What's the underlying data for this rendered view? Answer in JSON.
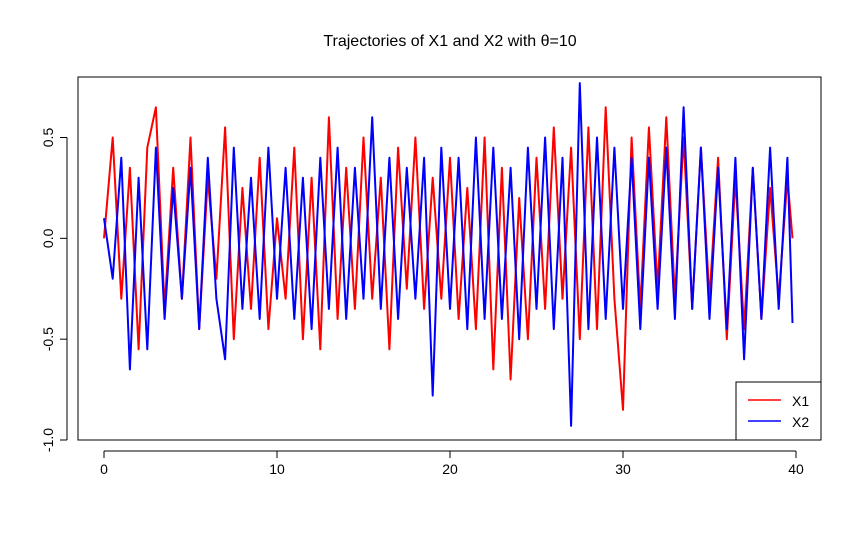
{
  "chart_data": {
    "type": "line",
    "title": "Trajectories of X1 and X2 with θ=10",
    "xlabel": "",
    "ylabel": "",
    "xlim": [
      0,
      40
    ],
    "ylim": [
      -1.0,
      0.8
    ],
    "x_ticks": [
      0,
      10,
      20,
      30,
      40
    ],
    "y_ticks": [
      -1.0,
      -0.5,
      0.0,
      0.5
    ],
    "x_tick_labels": [
      "0",
      "10",
      "20",
      "30",
      "40"
    ],
    "y_tick_labels": [
      "-1.0",
      "-0.5",
      "0.0",
      "0.5"
    ],
    "legend_position": "bottom-right",
    "grid": false,
    "series": [
      {
        "name": "X1",
        "color": "#ff0000",
        "x": [
          0.0,
          0.5,
          1.0,
          1.5,
          2.0,
          2.5,
          3.0,
          3.5,
          4.0,
          4.5,
          5.0,
          5.5,
          6.0,
          6.5,
          7.0,
          7.5,
          8.0,
          8.5,
          9.0,
          9.5,
          10.0,
          10.5,
          11.0,
          11.5,
          12.0,
          12.5,
          13.0,
          13.5,
          14.0,
          14.5,
          15.0,
          15.5,
          16.0,
          16.5,
          17.0,
          17.5,
          18.0,
          18.5,
          19.0,
          19.5,
          20.0,
          20.5,
          21.0,
          21.5,
          22.0,
          22.5,
          23.0,
          23.5,
          24.0,
          24.5,
          25.0,
          25.5,
          26.0,
          26.5,
          27.0,
          27.5,
          28.0,
          28.5,
          29.0,
          29.5,
          30.0,
          30.5,
          31.0,
          31.5,
          32.0,
          32.5,
          33.0,
          33.5,
          34.0,
          34.5,
          35.0,
          35.5,
          36.0,
          36.5,
          37.0,
          37.5,
          38.0,
          38.5,
          39.0,
          39.5,
          39.8
        ],
        "y": [
          0.0,
          0.5,
          -0.3,
          0.35,
          -0.55,
          0.45,
          0.65,
          -0.35,
          0.35,
          -0.3,
          0.5,
          -0.45,
          0.3,
          -0.2,
          0.55,
          -0.5,
          0.25,
          -0.35,
          0.4,
          -0.45,
          0.1,
          -0.3,
          0.45,
          -0.5,
          0.3,
          -0.55,
          0.6,
          -0.4,
          0.35,
          -0.35,
          0.5,
          -0.3,
          0.3,
          -0.55,
          0.45,
          -0.25,
          0.5,
          -0.35,
          0.3,
          -0.3,
          0.4,
          -0.4,
          0.25,
          -0.45,
          0.5,
          -0.65,
          0.35,
          -0.7,
          0.2,
          -0.5,
          0.4,
          -0.35,
          0.55,
          -0.3,
          0.45,
          -0.5,
          0.55,
          -0.45,
          0.65,
          -0.3,
          -0.85,
          0.5,
          -0.35,
          0.55,
          -0.25,
          0.6,
          -0.3,
          0.5,
          -0.35,
          0.45,
          -0.3,
          0.4,
          -0.5,
          0.3,
          -0.45,
          0.35,
          -0.4,
          0.25,
          -0.3,
          0.3,
          0.0
        ]
      },
      {
        "name": "X2",
        "color": "#0000ff",
        "x": [
          0.0,
          0.5,
          1.0,
          1.5,
          2.0,
          2.5,
          3.0,
          3.5,
          4.0,
          4.5,
          5.0,
          5.5,
          6.0,
          6.5,
          7.0,
          7.5,
          8.0,
          8.5,
          9.0,
          9.5,
          10.0,
          10.5,
          11.0,
          11.5,
          12.0,
          12.5,
          13.0,
          13.5,
          14.0,
          14.5,
          15.0,
          15.5,
          16.0,
          16.5,
          17.0,
          17.5,
          18.0,
          18.5,
          19.0,
          19.5,
          20.0,
          20.5,
          21.0,
          21.5,
          22.0,
          22.5,
          23.0,
          23.5,
          24.0,
          24.5,
          25.0,
          25.5,
          26.0,
          26.5,
          27.0,
          27.5,
          28.0,
          28.5,
          29.0,
          29.5,
          30.0,
          30.5,
          31.0,
          31.5,
          32.0,
          32.5,
          33.0,
          33.5,
          34.0,
          34.5,
          35.0,
          35.5,
          36.0,
          36.5,
          37.0,
          37.5,
          38.0,
          38.5,
          39.0,
          39.5,
          39.8
        ],
        "y": [
          0.1,
          -0.2,
          0.4,
          -0.65,
          0.3,
          -0.55,
          0.45,
          -0.4,
          0.25,
          -0.3,
          0.35,
          -0.45,
          0.4,
          -0.3,
          -0.6,
          0.45,
          -0.35,
          0.3,
          -0.4,
          0.45,
          -0.3,
          0.35,
          -0.4,
          0.3,
          -0.45,
          0.4,
          -0.35,
          0.45,
          -0.4,
          0.35,
          -0.3,
          0.6,
          -0.35,
          0.4,
          -0.4,
          0.35,
          -0.3,
          0.4,
          -0.78,
          0.45,
          -0.35,
          0.4,
          -0.45,
          0.5,
          -0.4,
          0.45,
          -0.4,
          0.35,
          -0.5,
          0.45,
          -0.35,
          0.5,
          -0.45,
          0.4,
          -0.93,
          0.77,
          -0.45,
          0.5,
          -0.4,
          0.45,
          -0.35,
          0.4,
          -0.45,
          0.4,
          -0.35,
          0.45,
          -0.4,
          0.65,
          -0.35,
          0.45,
          -0.4,
          0.35,
          -0.45,
          0.4,
          -0.6,
          0.35,
          -0.4,
          0.45,
          -0.35,
          0.4,
          -0.42
        ]
      }
    ]
  }
}
